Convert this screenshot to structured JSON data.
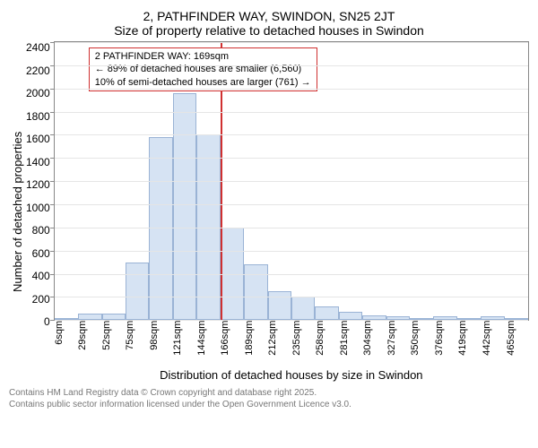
{
  "titles": {
    "main": "2, PATHFINDER WAY, SWINDON, SN25 2JT",
    "sub": "Size of property relative to detached houses in Swindon"
  },
  "chart": {
    "type": "histogram",
    "y_label": "Number of detached properties",
    "x_label": "Distribution of detached houses by size in Swindon",
    "y_ticks": [
      0,
      200,
      400,
      600,
      800,
      1000,
      1200,
      1400,
      1600,
      1800,
      2000,
      2200,
      2400
    ],
    "ylim": [
      0,
      2400
    ],
    "x_tick_labels": [
      "6sqm",
      "29sqm",
      "52sqm",
      "75sqm",
      "98sqm",
      "121sqm",
      "144sqm",
      "166sqm",
      "189sqm",
      "212sqm",
      "235sqm",
      "258sqm",
      "281sqm",
      "304sqm",
      "327sqm",
      "350sqm",
      "376sqm",
      "419sqm",
      "442sqm",
      "465sqm"
    ],
    "bar_values": [
      0,
      60,
      60,
      500,
      1580,
      1960,
      1600,
      800,
      480,
      250,
      200,
      120,
      70,
      40,
      30,
      20,
      30,
      20,
      30,
      20
    ],
    "bar_fill": "#d6e3f3",
    "bar_border": "#9ab3d5",
    "grid_color": "#e5e5e5",
    "axis_color": "#888888",
    "reference": {
      "index": 7,
      "color": "#d03030"
    },
    "annotation": {
      "lines": [
        "2 PATHFINDER WAY: 169sqm",
        "← 89% of detached houses are smaller (6,560)",
        "10% of semi-detached houses are larger (761) →"
      ],
      "border_color": "#d03030"
    }
  },
  "footer": {
    "line1": "Contains HM Land Registry data © Crown copyright and database right 2025.",
    "line2": "Contains public sector information licensed under the Open Government Licence v3.0."
  }
}
